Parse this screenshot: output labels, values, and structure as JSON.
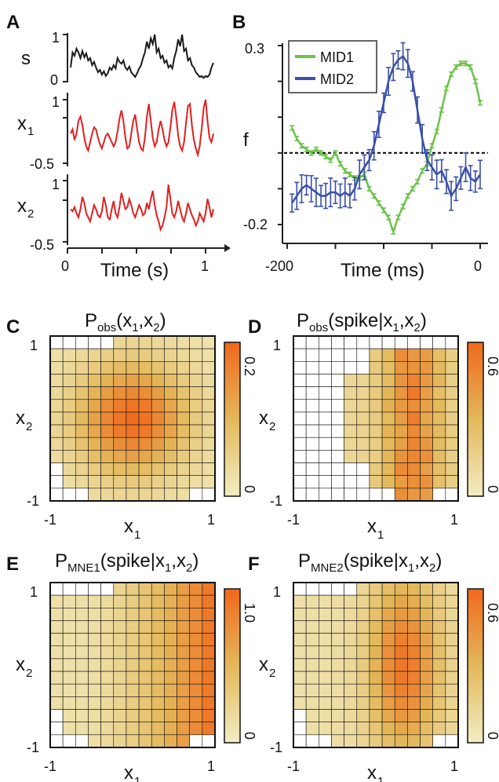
{
  "panels": {
    "A": {
      "label": "A",
      "rows": [
        {
          "name": "s",
          "label": "s",
          "sub": "",
          "ticks": [
            "1",
            "0"
          ],
          "values": [
            0.3,
            0.62,
            0.55,
            0.7,
            0.62,
            0.5,
            0.65,
            0.52,
            0.6,
            0.45,
            0.5,
            0.35,
            0.42,
            0.3,
            0.2,
            0.25,
            0.15,
            0.22,
            0.12,
            0.18,
            0.3,
            0.25,
            0.35,
            0.28,
            0.5,
            0.42,
            0.38,
            0.45,
            0.3,
            0.25,
            0.32,
            0.2,
            0.15,
            0.1,
            0.18,
            0.28,
            0.35,
            0.5,
            0.62,
            0.85,
            0.7,
            0.92,
            0.8,
            1.0,
            0.62,
            0.7,
            0.5,
            0.55,
            0.4,
            0.45,
            0.3,
            0.35,
            0.28,
            0.5,
            0.65,
            0.9,
            0.75,
            1.0,
            0.65,
            0.7,
            0.45,
            0.5,
            0.35,
            0.3,
            0.2,
            0.15,
            0.1,
            0.12,
            0.08,
            0.12,
            0.1,
            0.15,
            0.3,
            0.4
          ],
          "color": "#1a1a1a",
          "ylim": [
            0,
            1
          ]
        },
        {
          "name": "x1",
          "label": "x",
          "sub": "1",
          "ticks": [
            "1",
            "-0.5"
          ],
          "values": [
            0.2,
            0.3,
            0.05,
            0.2,
            0.5,
            0.6,
            0.4,
            0.1,
            -0.1,
            -0.2,
            0.0,
            0.2,
            0.35,
            0.3,
            0.1,
            -0.05,
            -0.15,
            0.0,
            0.15,
            0.2,
            0.1,
            0.0,
            -0.1,
            0.0,
            0.25,
            0.55,
            0.75,
            0.5,
            0.1,
            -0.15,
            -0.1,
            0.2,
            0.5,
            0.65,
            0.3,
            0.0,
            -0.15,
            -0.2,
            0.1,
            0.6,
            0.9,
            0.5,
            0.1,
            -0.1,
            0.0,
            0.3,
            0.5,
            0.3,
            0.05,
            -0.1,
            0.0,
            0.35,
            0.75,
            0.95,
            0.6,
            0.15,
            -0.1,
            -0.2,
            0.0,
            0.45,
            0.85,
            0.9,
            0.4,
            0.05,
            -0.15,
            -0.3,
            -0.1,
            0.3,
            0.8,
            1.0,
            0.5,
            0.1,
            0.0,
            0.2
          ],
          "color": "#e02020",
          "ylim": [
            -0.5,
            1
          ]
        },
        {
          "name": "x2",
          "label": "x",
          "sub": "2",
          "ticks": [
            "1",
            "-0.5"
          ],
          "values": [
            0.3,
            0.25,
            0.35,
            0.2,
            0.1,
            0.3,
            0.6,
            0.45,
            0.2,
            0.1,
            0.0,
            0.2,
            0.4,
            0.3,
            0.15,
            0.1,
            0.25,
            0.6,
            0.4,
            0.1,
            0.05,
            0.3,
            0.5,
            0.2,
            0.1,
            0.35,
            0.7,
            0.5,
            0.3,
            0.35,
            0.55,
            0.4,
            0.2,
            0.1,
            0.25,
            0.4,
            0.3,
            0.15,
            0.2,
            0.45,
            0.3,
            0.55,
            0.75,
            0.4,
            0.15,
            0.0,
            -0.2,
            -0.1,
            0.1,
            0.35,
            0.9,
            0.55,
            0.2,
            0.1,
            0.25,
            0.5,
            0.3,
            0.1,
            0.0,
            0.2,
            0.45,
            0.3,
            0.15,
            0.05,
            -0.1,
            0.0,
            0.2,
            0.1,
            0.0,
            0.2,
            0.55,
            0.35,
            0.1,
            0.3
          ],
          "color": "#e02020",
          "ylim": [
            -0.5,
            1
          ]
        }
      ],
      "xticks": [
        "0",
        "1"
      ],
      "xlabel": "Time (s)"
    },
    "B": {
      "label": "B",
      "ylabel": "f",
      "yticks": [
        "0.3",
        "-0.2"
      ],
      "xticks": [
        "-200",
        "0"
      ],
      "xlabel": "Time (ms)"
    },
    "C": {
      "label": "C",
      "title": "P",
      "title_sub": "obs",
      "title_rest": "(x",
      "title_r1": "1",
      "title_mid": ",x",
      "title_r2": "2",
      "title_end": ")",
      "cbar_max": "0.2",
      "cbar_min": "0",
      "ylabel": "x",
      "ylabel_sub": "2",
      "xlabel": "x",
      "xlabel_sub": "1",
      "xmin": "-1",
      "xmax": "1",
      "ymin": "-1",
      "ymax": "1"
    },
    "D": {
      "label": "D",
      "title": "P",
      "title_sub": "obs",
      "title_rest": "(spike|x",
      "title_r1": "1",
      "title_mid": ",x",
      "title_r2": "2",
      "title_end": ")",
      "cbar_max": "0.6",
      "cbar_min": "0",
      "ylabel": "x",
      "ylabel_sub": "2",
      "xlabel": "x",
      "xlabel_sub": "1",
      "xmin": "-1",
      "xmax": "1",
      "ymin": "-1",
      "ymax": "1"
    },
    "E": {
      "label": "E",
      "title": "P",
      "title_sub": "MNE1",
      "title_rest": "(spike|x",
      "title_r1": "1",
      "title_mid": ",x",
      "title_r2": "2",
      "title_end": ")",
      "cbar_max": "1.0",
      "cbar_min": "0",
      "ylabel": "x",
      "ylabel_sub": "2",
      "xlabel": "x",
      "xlabel_sub": "1",
      "xmin": "-1",
      "xmax": "1",
      "ymin": "-1",
      "ymax": "1"
    },
    "F": {
      "label": "F",
      "title": "P",
      "title_sub": "MNE2",
      "title_rest": "(spike|x",
      "title_r1": "1",
      "title_mid": ",x",
      "title_r2": "2",
      "title_end": ")",
      "cbar_max": "0.6",
      "cbar_min": "0",
      "ylabel": "x",
      "ylabel_sub": "2",
      "xlabel": "x",
      "xlabel_sub": "1",
      "xmin": "-1",
      "xmax": "1",
      "ymin": "-1",
      "ymax": "1"
    }
  },
  "colors": {
    "mid1": "#6cc24a",
    "mid2": "#3a4fa8",
    "trace_s": "#1a1a1a",
    "trace_x": "#e02020",
    "cmap_low": "#f2ecc0",
    "cmap_mid": "#e3b85a",
    "cmap_high": "#f06a1e"
  },
  "chart_data": [
    {
      "type": "line",
      "panel": "B",
      "ylabel": "f",
      "xlabel": "Time (ms)",
      "xlim": [
        -200,
        0
      ],
      "ylim": [
        -0.2,
        0.3
      ],
      "x": [
        -195,
        -190,
        -185,
        -180,
        -175,
        -170,
        -165,
        -160,
        -155,
        -150,
        -145,
        -140,
        -135,
        -130,
        -125,
        -120,
        -115,
        -110,
        -105,
        -100,
        -95,
        -90,
        -85,
        -80,
        -75,
        -70,
        -65,
        -60,
        -55,
        -50,
        -45,
        -40,
        -35,
        -30,
        -25,
        -20,
        -15,
        -10,
        -5,
        0
      ],
      "series": [
        {
          "name": "MID1",
          "values": [
            0.07,
            0.04,
            0.02,
            0.01,
            0.0,
            0.01,
            0.0,
            -0.01,
            -0.02,
            0.0,
            -0.03,
            -0.05,
            -0.06,
            -0.07,
            -0.07,
            -0.06,
            -0.1,
            -0.12,
            -0.14,
            -0.16,
            -0.18,
            -0.22,
            -0.18,
            -0.15,
            -0.12,
            -0.1,
            -0.08,
            -0.05,
            -0.03,
            0.02,
            0.06,
            0.12,
            0.18,
            0.22,
            0.24,
            0.25,
            0.25,
            0.24,
            0.2,
            0.14
          ]
        },
        {
          "name": "MID2",
          "values": [
            -0.14,
            -0.12,
            -0.1,
            -0.09,
            -0.1,
            -0.11,
            -0.12,
            -0.12,
            -0.11,
            -0.11,
            -0.12,
            -0.11,
            -0.12,
            -0.1,
            -0.06,
            -0.04,
            -0.02,
            0.02,
            0.08,
            0.14,
            0.2,
            0.24,
            0.26,
            0.27,
            0.25,
            0.2,
            0.12,
            0.04,
            -0.02,
            -0.04,
            -0.06,
            -0.05,
            -0.08,
            -0.12,
            -0.1,
            -0.07,
            -0.04,
            -0.07,
            -0.08,
            -0.06
          ]
        }
      ],
      "reference_line": 0.0
    },
    {
      "type": "heatmap",
      "panel": "C",
      "title": "Pobs(x1,x2)",
      "xlim": [
        -1,
        1
      ],
      "ylim": [
        -1,
        1
      ],
      "cbar": [
        0,
        0.2
      ],
      "shape": "gaussian"
    },
    {
      "type": "heatmap",
      "panel": "D",
      "title": "Pobs(spike|x1,x2)",
      "xlim": [
        -1,
        1
      ],
      "ylim": [
        -1,
        1
      ],
      "cbar": [
        0,
        0.6
      ],
      "shape": "observed"
    },
    {
      "type": "heatmap",
      "panel": "E",
      "title": "PMNE1(spike|x1,x2)",
      "xlim": [
        -1,
        1
      ],
      "ylim": [
        -1,
        1
      ],
      "cbar": [
        0,
        1.0
      ],
      "shape": "ramp_x1"
    },
    {
      "type": "heatmap",
      "panel": "F",
      "title": "PMNE2(spike|x1,x2)",
      "xlim": [
        -1,
        1
      ],
      "ylim": [
        -1,
        1
      ],
      "cbar": [
        0,
        0.6
      ],
      "shape": "bump_x1"
    }
  ]
}
